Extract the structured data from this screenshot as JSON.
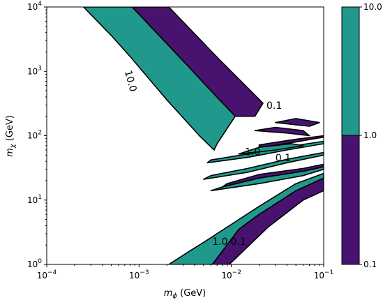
{
  "chart_data": {
    "type": "contour",
    "xlabel": "m_φ (GeV)",
    "ylabel": "m_χ (GeV)",
    "x_scale": "log",
    "y_scale": "log",
    "xlim": [
      0.0001,
      0.1
    ],
    "ylim": [
      1,
      10000
    ],
    "x_ticks": [
      {
        "value": 0.0001,
        "base": "10",
        "exp": "−4"
      },
      {
        "value": 0.001,
        "base": "10",
        "exp": "−3"
      },
      {
        "value": 0.01,
        "base": "10",
        "exp": "−2"
      },
      {
        "value": 0.1,
        "base": "10",
        "exp": "−1"
      }
    ],
    "y_ticks": [
      {
        "value": 1,
        "base": "10",
        "exp": "0"
      },
      {
        "value": 10,
        "base": "10",
        "exp": "1"
      },
      {
        "value": 100,
        "base": "10",
        "exp": "2"
      },
      {
        "value": 1000,
        "base": "10",
        "exp": "3"
      },
      {
        "value": 10000,
        "base": "10",
        "exp": "4"
      }
    ],
    "levels": [
      0.1,
      1.0,
      10.0
    ],
    "colorbar_ticks": [
      "0.1",
      "1.0",
      "10.0"
    ],
    "colors": {
      "band_0.1_to_1.0": "#47136e",
      "band_1.0_to_10.0": "#20998c"
    },
    "regions": [
      {
        "band": "0.1-1.0",
        "points": [
          [
            0.00084,
            10000
          ],
          [
            0.0021,
            10000
          ],
          [
            0.0075,
            1500
          ],
          [
            0.022,
            320
          ],
          [
            0.018,
            200
          ],
          [
            0.011,
            200
          ],
          [
            0.0055,
            570
          ],
          [
            0.0035,
            1150
          ]
        ]
      },
      {
        "band": "1.0-10.0",
        "points": [
          [
            0.00025,
            10000
          ],
          [
            0.00084,
            10000
          ],
          [
            0.0035,
            1150
          ],
          [
            0.0055,
            570
          ],
          [
            0.011,
            200
          ],
          [
            0.007,
            75
          ],
          [
            0.0065,
            60
          ],
          [
            0.0045,
            100
          ],
          [
            0.002,
            360
          ],
          [
            0.0008,
            1700
          ],
          [
            0.0005,
            3600
          ]
        ]
      },
      {
        "band": "0.1-1.0",
        "points": [
          [
            0.0062,
            1
          ],
          [
            0.0095,
            1
          ],
          [
            0.025,
            3.8
          ],
          [
            0.06,
            10
          ],
          [
            0.1,
            14
          ],
          [
            0.1,
            22
          ],
          [
            0.05,
            14
          ],
          [
            0.02,
            6
          ],
          [
            0.012,
            3.5
          ]
        ]
      },
      {
        "band": "1.0-10.0",
        "points": [
          [
            0.0021,
            1
          ],
          [
            0.0062,
            1
          ],
          [
            0.012,
            3.5
          ],
          [
            0.02,
            6
          ],
          [
            0.05,
            14
          ],
          [
            0.1,
            22
          ],
          [
            0.1,
            26
          ],
          [
            0.05,
            18
          ],
          [
            0.02,
            8
          ],
          [
            0.0095,
            4
          ],
          [
            0.005,
            2.2
          ],
          [
            0.0035,
            1.6
          ]
        ]
      },
      {
        "band": "1.0-10.0",
        "points": [
          [
            0.006,
            14
          ],
          [
            0.02,
            18
          ],
          [
            0.06,
            24
          ],
          [
            0.1,
            30
          ],
          [
            0.1,
            33
          ],
          [
            0.06,
            28
          ],
          [
            0.02,
            22
          ],
          [
            0.008,
            16
          ]
        ]
      },
      {
        "band": "0.1-1.0",
        "points": [
          [
            0.008,
            16
          ],
          [
            0.02,
            22
          ],
          [
            0.06,
            28
          ],
          [
            0.1,
            33
          ],
          [
            0.1,
            36
          ],
          [
            0.06,
            31
          ],
          [
            0.02,
            25
          ],
          [
            0.009,
            18
          ]
        ]
      },
      {
        "band": "1.0-10.0",
        "points": [
          [
            0.005,
            21
          ],
          [
            0.015,
            27
          ],
          [
            0.04,
            38
          ],
          [
            0.1,
            50
          ],
          [
            0.1,
            55
          ],
          [
            0.04,
            43
          ],
          [
            0.015,
            31
          ],
          [
            0.006,
            24
          ]
        ]
      },
      {
        "band": "1.0-10.0",
        "points": [
          [
            0.0055,
            38
          ],
          [
            0.015,
            46
          ],
          [
            0.04,
            60
          ],
          [
            0.1,
            75
          ],
          [
            0.1,
            82
          ],
          [
            0.04,
            67
          ],
          [
            0.015,
            52
          ],
          [
            0.006,
            42
          ]
        ]
      },
      {
        "band": "0.1-1.0",
        "points": [
          [
            0.02,
            65
          ],
          [
            0.05,
            80
          ],
          [
            0.1,
            95
          ],
          [
            0.1,
            100
          ],
          [
            0.05,
            88
          ],
          [
            0.02,
            72
          ]
        ]
      },
      {
        "band": "0.1-1.0",
        "points": [
          [
            0.018,
            120
          ],
          [
            0.04,
            110
          ],
          [
            0.07,
            100
          ],
          [
            0.06,
            120
          ],
          [
            0.03,
            135
          ]
        ]
      },
      {
        "band": "0.1-1.0",
        "points": [
          [
            0.03,
            160
          ],
          [
            0.07,
            140
          ],
          [
            0.09,
            160
          ],
          [
            0.05,
            185
          ]
        ]
      },
      {
        "band": "1.0-10.0",
        "points": [
          [
            0.012,
            52
          ],
          [
            0.03,
            60
          ],
          [
            0.06,
            70
          ],
          [
            0.045,
            75
          ],
          [
            0.02,
            66
          ]
        ]
      }
    ],
    "contour_labels": [
      {
        "text": "10.0",
        "x": 0.0007,
        "y": 1000,
        "rotate": 75
      },
      {
        "text": "0.1",
        "x": 0.024,
        "y": 260,
        "rotate": 0
      },
      {
        "text": "1.0",
        "x": 0.0062,
        "y": 2.0,
        "rotate": 0
      },
      {
        "text": "0.1",
        "x": 0.0098,
        "y": 2.0,
        "rotate": 0
      },
      {
        "text": "1.0",
        "x": 0.014,
        "y": 50,
        "rotate": 0
      },
      {
        "text": "0.1",
        "x": 0.03,
        "y": 40,
        "rotate": 0
      }
    ]
  }
}
